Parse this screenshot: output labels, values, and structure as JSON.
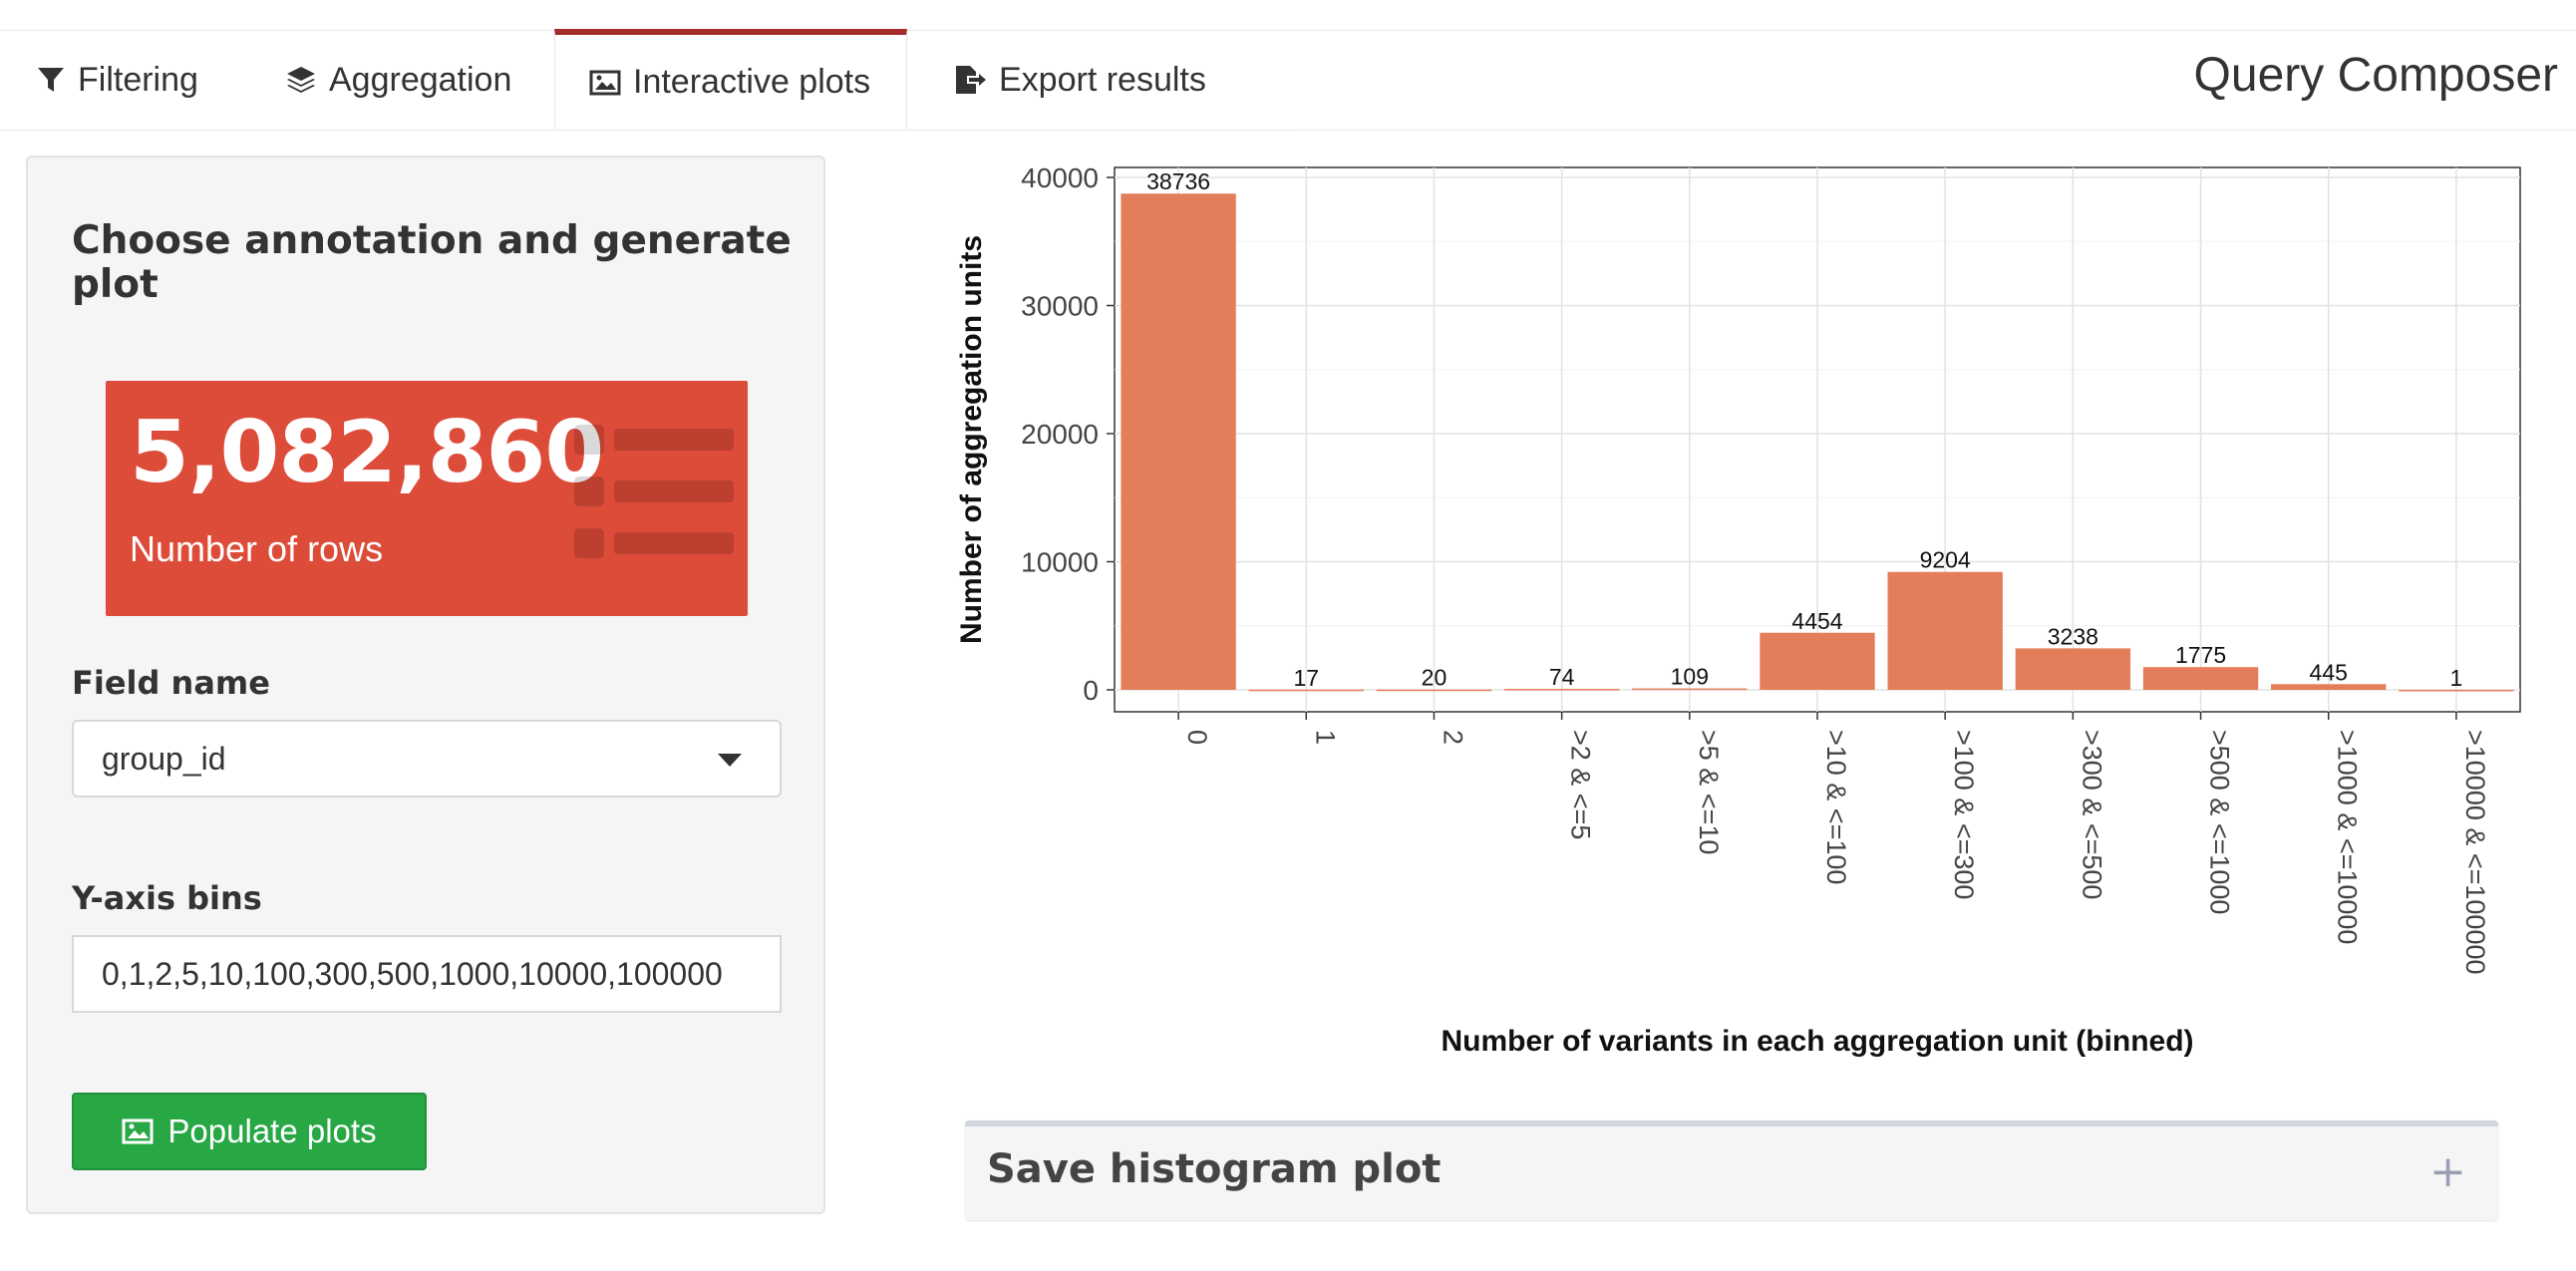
{
  "header": {
    "app_title": "Query Composer",
    "tabs": [
      {
        "label": "Filtering",
        "icon": "filter-icon",
        "active": false
      },
      {
        "label": "Aggregation",
        "icon": "layers-icon",
        "active": false
      },
      {
        "label": "Interactive plots",
        "icon": "image-icon",
        "active": true
      },
      {
        "label": "Export results",
        "icon": "export-file-icon",
        "active": false
      }
    ]
  },
  "sidebar": {
    "heading": "Choose annotation and generate plot",
    "value_box": {
      "value": "5,082,860",
      "subtitle": "Number of rows",
      "icon": "list-icon",
      "color": "#dd4b39"
    },
    "field_name": {
      "label": "Field name",
      "selected": "group_id"
    },
    "bins": {
      "label": "Y-axis bins",
      "value": "0,1,2,5,10,100,300,500,1000,10000,100000"
    },
    "populate_button": {
      "label": "Populate plots",
      "icon": "image-icon",
      "color": "#28a745"
    }
  },
  "chart_data": {
    "type": "bar",
    "categories": [
      "0",
      "1",
      "2",
      ">2 & <=5",
      ">5 & <=10",
      ">10 & <=100",
      ">100 & <=300",
      ">300 & <=500",
      ">500 & <=1000",
      ">1000 & <=10000",
      ">10000 & <=100000"
    ],
    "values": [
      38736,
      17,
      20,
      74,
      109,
      4454,
      9204,
      3238,
      1775,
      445,
      1
    ],
    "xlabel": "Number of variants in each aggregation unit (binned)",
    "ylabel": "Number of aggregation units",
    "yticks": [
      0,
      10000,
      20000,
      30000,
      40000
    ],
    "ylim": [
      0,
      40000
    ],
    "bar_color": "#e47d5a",
    "grid": true
  },
  "save_box": {
    "title": "Save histogram plot",
    "toggle": "+"
  }
}
